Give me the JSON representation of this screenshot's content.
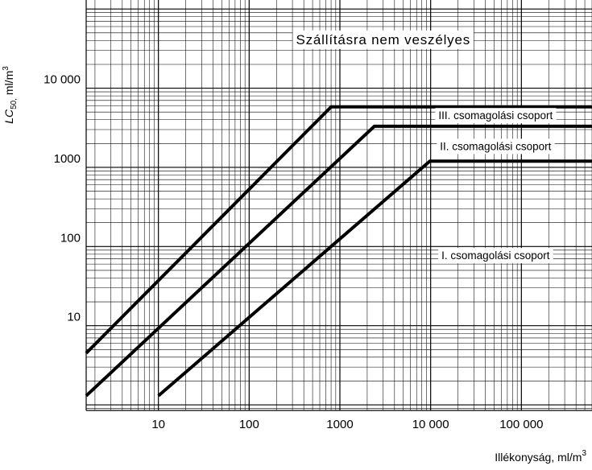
{
  "chart_data": {
    "type": "line",
    "x_scale": "log",
    "y_scale": "log",
    "xlim": [
      1.6,
      600000
    ],
    "ylim": [
      0.85,
      130000
    ],
    "x_tick_labels": [
      {
        "value": 10,
        "label": "10"
      },
      {
        "value": 100,
        "label": "100"
      },
      {
        "value": 1000,
        "label": "1000"
      },
      {
        "value": 10000,
        "label": "10 000"
      },
      {
        "value": 100000,
        "label": "100 000"
      }
    ],
    "y_tick_labels": [
      {
        "value": 10,
        "label": "10"
      },
      {
        "value": 100,
        "label": "100"
      },
      {
        "value": 1000,
        "label": "1000"
      },
      {
        "value": 10000,
        "label": "10 000"
      }
    ],
    "xlabel": {
      "main": "Illékonyság,  ml/m",
      "sup": "3"
    },
    "ylabel": {
      "main": "LC",
      "sub": "50,",
      "rest": " ml/m",
      "sup": "3"
    },
    "grid": true,
    "series": [
      {
        "points": [
          [
            1.6,
            4.5
          ],
          [
            800,
            5800
          ],
          [
            600000,
            5800
          ]
        ]
      },
      {
        "points": [
          [
            1.6,
            1.3
          ],
          [
            2400,
            3300
          ],
          [
            600000,
            3300
          ]
        ]
      },
      {
        "points": [
          [
            10,
            1.3
          ],
          [
            9800,
            1200
          ],
          [
            600000,
            1200
          ]
        ]
      }
    ],
    "annotations": [
      {
        "text": "Szállításra nem veszélyes",
        "x": 3000,
        "y": 40000,
        "size": "large"
      },
      {
        "text": "III. csomagolási csoport",
        "x": 52000,
        "y": 4400,
        "size": "small"
      },
      {
        "text": "II. csomagolási csoport",
        "x": 52000,
        "y": 1800,
        "size": "small"
      },
      {
        "text": "I. csomagolási csoport",
        "x": 52000,
        "y": 75,
        "size": "small"
      }
    ]
  }
}
